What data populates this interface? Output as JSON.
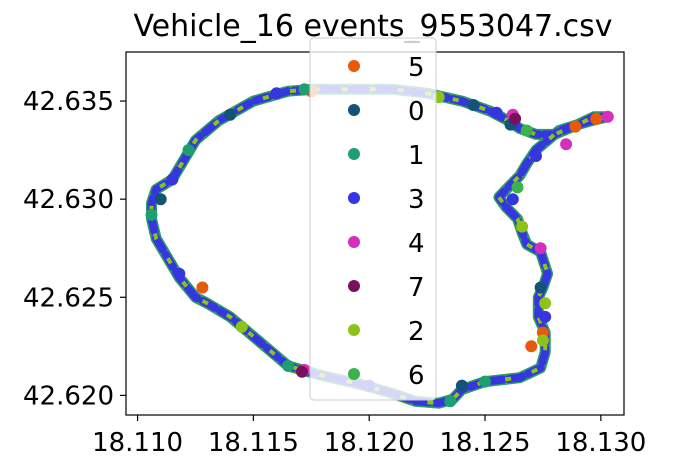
{
  "chart_data": {
    "type": "scatter",
    "title": "Vehicle_16 events_9553047.csv",
    "xlabel": "",
    "ylabel": "",
    "xlim": [
      18.1095,
      18.131
    ],
    "ylim": [
      42.619,
      42.6375
    ],
    "xticks": [
      18.11,
      18.115,
      18.12,
      18.125,
      18.13
    ],
    "yticks": [
      42.62,
      42.625,
      42.63,
      42.635
    ],
    "xtick_labels": [
      "18.110",
      "18.115",
      "18.120",
      "18.125",
      "18.130"
    ],
    "ytick_labels": [
      "42.620",
      "42.625",
      "42.630",
      "42.635"
    ],
    "grid": false,
    "legend_position": "top-center",
    "route": [
      [
        18.1176,
        42.6356
      ],
      [
        18.119,
        42.6356
      ],
      [
        18.121,
        42.6356
      ],
      [
        18.1225,
        42.6354
      ],
      [
        18.124,
        42.635
      ],
      [
        18.1252,
        42.6345
      ],
      [
        18.126,
        42.634
      ],
      [
        18.1265,
        42.6336
      ],
      [
        18.1272,
        42.6333
      ],
      [
        18.128,
        42.6333
      ],
      [
        18.129,
        42.6338
      ],
      [
        18.1297,
        42.6342
      ],
      [
        18.1303,
        42.6342
      ],
      [
        18.1296,
        42.634
      ],
      [
        18.129,
        42.6338
      ],
      [
        18.1282,
        42.6335
      ],
      [
        18.1277,
        42.633
      ],
      [
        18.1272,
        42.6325
      ],
      [
        18.1268,
        42.6318
      ],
      [
        18.1265,
        42.6312
      ],
      [
        18.126,
        42.6306
      ],
      [
        18.1256,
        42.6301
      ],
      [
        18.1259,
        42.6296
      ],
      [
        18.1264,
        42.629
      ],
      [
        18.1266,
        42.6283
      ],
      [
        18.1268,
        42.6277
      ],
      [
        18.1274,
        42.6273
      ],
      [
        18.1277,
        42.6262
      ],
      [
        18.1275,
        42.6255
      ],
      [
        18.1273,
        42.625
      ],
      [
        18.1273,
        42.624
      ],
      [
        18.1276,
        42.6232
      ],
      [
        18.1276,
        42.6222
      ],
      [
        18.1274,
        42.6214
      ],
      [
        18.1265,
        42.6209
      ],
      [
        18.125,
        42.6207
      ],
      [
        18.124,
        42.6203
      ],
      [
        18.1236,
        42.6198
      ],
      [
        18.123,
        42.6196
      ],
      [
        18.122,
        42.6197
      ],
      [
        18.121,
        42.6201
      ],
      [
        18.1195,
        42.6206
      ],
      [
        18.118,
        42.621
      ],
      [
        18.1165,
        42.6215
      ],
      [
        18.1155,
        42.6225
      ],
      [
        18.114,
        42.624
      ],
      [
        18.113,
        42.6247
      ],
      [
        18.1125,
        42.625
      ],
      [
        18.1118,
        42.626
      ],
      [
        18.1113,
        42.627
      ],
      [
        18.1108,
        42.628
      ],
      [
        18.1106,
        42.629
      ],
      [
        18.1106,
        42.6298
      ],
      [
        18.1108,
        42.6305
      ],
      [
        18.1115,
        42.631
      ],
      [
        18.112,
        42.632
      ],
      [
        18.1125,
        42.633
      ],
      [
        18.1135,
        42.634
      ],
      [
        18.115,
        42.635
      ],
      [
        18.1165,
        42.6355
      ],
      [
        18.1176,
        42.6356
      ]
    ],
    "series": [
      {
        "name": "5",
        "color": "#e8590c",
        "points": [
          [
            18.1175,
            42.6355
          ],
          [
            18.1298,
            42.6341
          ],
          [
            18.1289,
            42.6337
          ],
          [
            18.1275,
            42.6232
          ],
          [
            18.127,
            42.6225
          ],
          [
            18.1128,
            42.6255
          ]
        ]
      },
      {
        "name": "0",
        "color": "#14527a",
        "points": [
          [
            18.1245,
            42.6348
          ],
          [
            18.1261,
            42.6338
          ],
          [
            18.1274,
            42.6255
          ],
          [
            18.124,
            42.6205
          ],
          [
            18.111,
            42.63
          ],
          [
            18.114,
            42.6343
          ]
        ]
      },
      {
        "name": "1",
        "color": "#1f9f6f",
        "points": [
          [
            18.1172,
            42.6356
          ],
          [
            18.125,
            42.6207
          ],
          [
            18.1235,
            42.6197
          ],
          [
            18.1165,
            42.6215
          ],
          [
            18.1106,
            42.6292
          ],
          [
            18.1122,
            42.6325
          ]
        ]
      },
      {
        "name": "3",
        "color": "#3636e0",
        "points": [
          [
            18.116,
            42.6354
          ],
          [
            18.1255,
            42.6344
          ],
          [
            18.1272,
            42.6322
          ],
          [
            18.1262,
            42.63
          ],
          [
            18.1276,
            42.624
          ],
          [
            18.12,
            42.6205
          ],
          [
            18.1118,
            42.6262
          ],
          [
            18.1115,
            42.631
          ]
        ]
      },
      {
        "name": "4",
        "color": "#d62fbe",
        "points": [
          [
            18.1262,
            42.6343
          ],
          [
            18.1285,
            42.6328
          ],
          [
            18.1303,
            42.6342
          ],
          [
            18.1274,
            42.6275
          ],
          [
            18.1172,
            42.6213
          ]
        ]
      },
      {
        "name": "7",
        "color": "#7a0f5c",
        "points": [
          [
            18.1263,
            42.6341
          ],
          [
            18.1171,
            42.6212
          ]
        ]
      },
      {
        "name": "2",
        "color": "#8cc21a",
        "points": [
          [
            18.123,
            42.6352
          ],
          [
            18.1266,
            42.6286
          ],
          [
            18.1276,
            42.6247
          ],
          [
            18.1275,
            42.6228
          ],
          [
            18.1145,
            42.6235
          ]
        ]
      },
      {
        "name": "6",
        "color": "#3bb24a",
        "points": [
          [
            18.1268,
            42.6335
          ],
          [
            18.1264,
            42.6306
          ]
        ]
      }
    ]
  }
}
